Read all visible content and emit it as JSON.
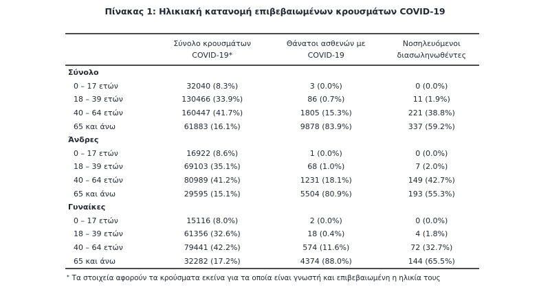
{
  "page": {
    "title": "Πίνακας 1: Ηλικιακή κατανομή επιβεβαιωμένων κρουσμάτων COVID-19"
  },
  "table": {
    "header": {
      "cases": [
        "Σύνολο κρουσμάτων",
        "COVID-19*"
      ],
      "deaths": [
        "Θάνατοι ασθενών με",
        "COVID-19"
      ],
      "intubated": [
        "Νοσηλευόμενοι",
        "διασωληνωθέντες"
      ]
    },
    "sections": [
      {
        "label": "Σύνολο",
        "rows": [
          {
            "age": "0 – 17 ετών",
            "cases": "32040 (8.3%)",
            "deaths": "3 (0.0%)",
            "intubated": "0 (0.0%)"
          },
          {
            "age": "18 – 39 ετών",
            "cases": "130466 (33.9%)",
            "deaths": "86 (0.7%)",
            "intubated": "11 (1.9%)"
          },
          {
            "age": "40 – 64 ετών",
            "cases": "160447 (41.7%)",
            "deaths": "1805 (15.3%)",
            "intubated": "221 (38.8%)"
          },
          {
            "age": "65 και άνω",
            "cases": "61883 (16.1%)",
            "deaths": "9878 (83.9%)",
            "intubated": "337 (59.2%)"
          }
        ]
      },
      {
        "label": "Άνδρες",
        "rows": [
          {
            "age": "0 – 17 ετών",
            "cases": "16922 (8.6%)",
            "deaths": "1 (0.0%)",
            "intubated": "0 (0.0%)"
          },
          {
            "age": "18 – 39 ετών",
            "cases": "69103 (35.1%)",
            "deaths": "68 (1.0%)",
            "intubated": "7 (2.0%)"
          },
          {
            "age": "40 – 64 ετών",
            "cases": "80989 (41.2%)",
            "deaths": "1231 (18.1%)",
            "intubated": "149 (42.7%)"
          },
          {
            "age": "65 και άνω",
            "cases": "29595 (15.1%)",
            "deaths": "5504 (80.9%)",
            "intubated": "193 (55.3%)"
          }
        ]
      },
      {
        "label": "Γυναίκες",
        "rows": [
          {
            "age": "0 – 17 ετών",
            "cases": "15116 (8.0%)",
            "deaths": "2 (0.0%)",
            "intubated": "0 (0.0%)"
          },
          {
            "age": "18 – 39 ετών",
            "cases": "61356 (32.6%)",
            "deaths": "18 (0.4%)",
            "intubated": "4 (1.8%)"
          },
          {
            "age": "40 – 64 ετών",
            "cases": "79441 (42.2%)",
            "deaths": "574 (11.6%)",
            "intubated": "72 (32.7%)"
          },
          {
            "age": "65 και άνω",
            "cases": "32282 (17.2%)",
            "deaths": "4374 (88.0%)",
            "intubated": "144 (65.5%)"
          }
        ]
      }
    ]
  },
  "footnote": {
    "marker": "*",
    "text": "Τα στοιχεία αφορούν τα κρούσματα εκείνα για τα οποία είναι γνωστή και επιβεβαιωμένη η ηλικία τους"
  },
  "colors": {
    "text": "#242933",
    "rule": "#4a4a4a",
    "background": "#ffffff"
  }
}
